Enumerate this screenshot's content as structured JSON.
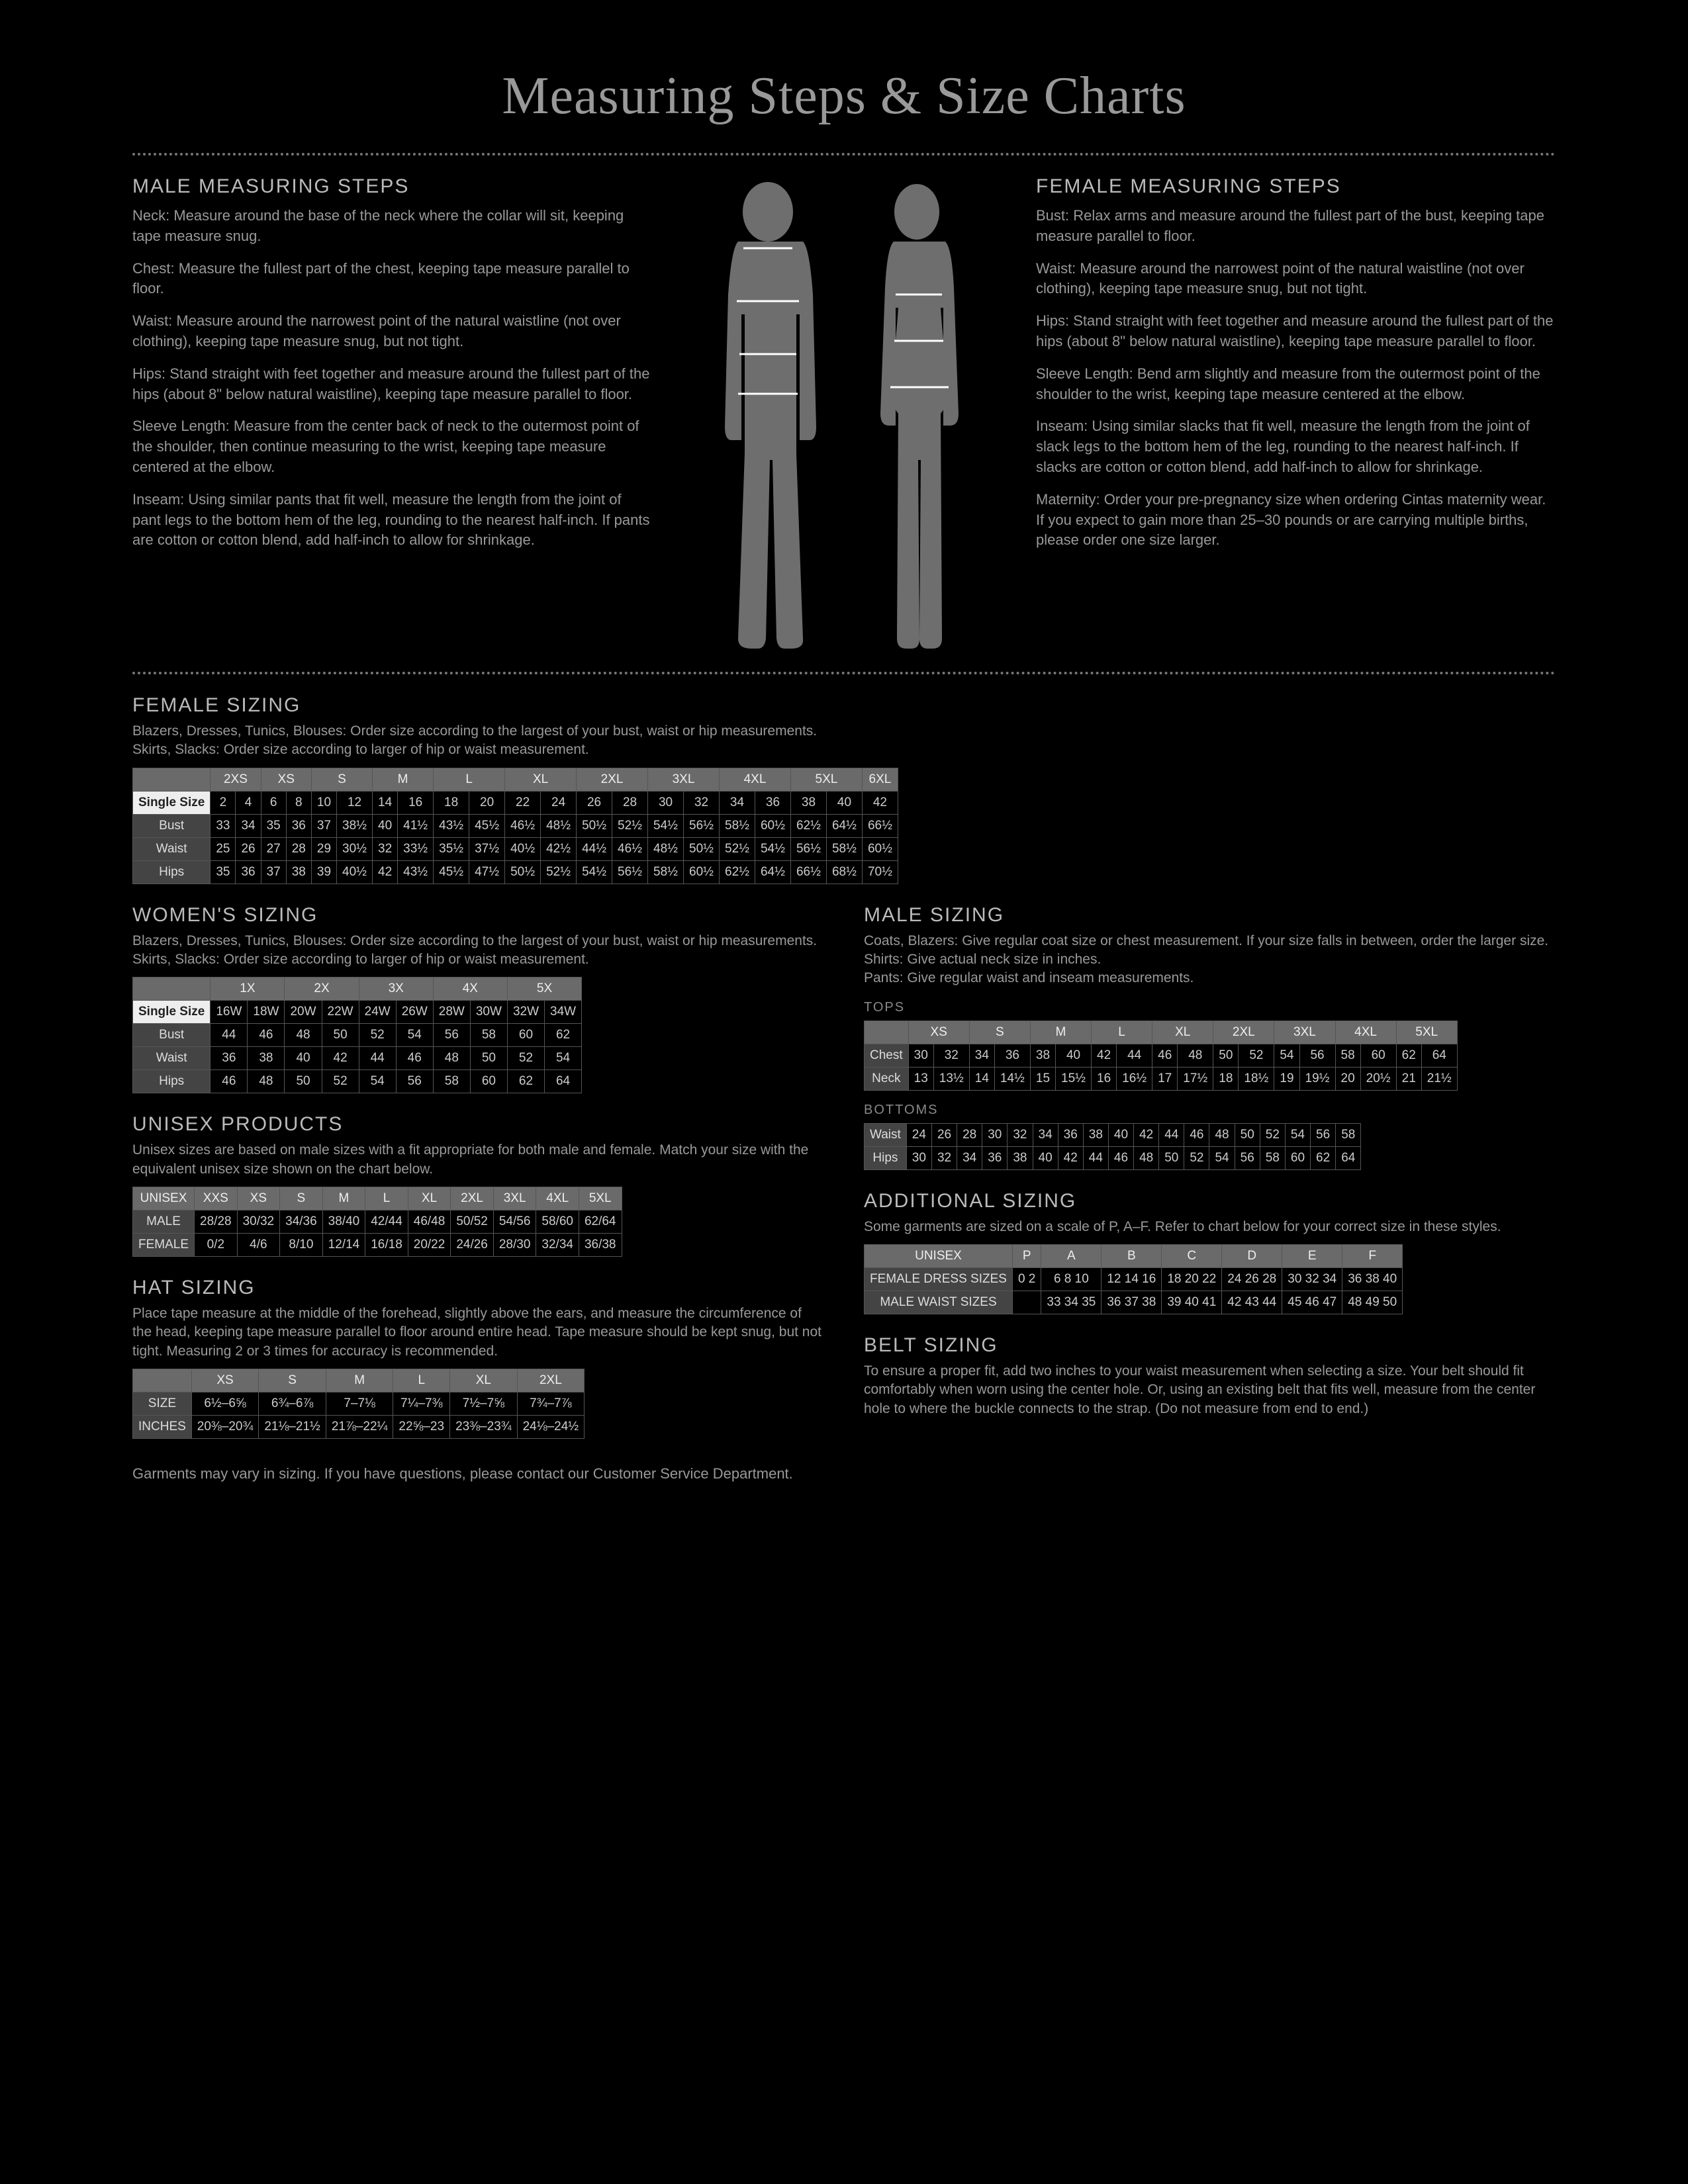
{
  "title": "Measuring Steps & Size Charts",
  "male_steps": {
    "heading": "MALE MEASURING STEPS",
    "items": [
      "Neck: Measure around the base of the neck where the collar will sit, keeping tape measure snug.",
      "Chest: Measure the fullest part of the chest, keeping tape measure parallel to floor.",
      "Waist: Measure around the narrowest point of the natural waistline (not over clothing), keeping tape measure snug, but not tight.",
      "Hips: Stand straight with feet together and measure around the fullest part of the hips (about 8\" below natural waistline), keeping tape measure parallel to floor.",
      "Sleeve Length: Measure from the center back of neck to the outermost point of the shoulder, then continue measuring to the wrist, keeping tape measure centered at the elbow.",
      "Inseam: Using similar pants that fit well, measure the length from the joint of pant legs to the bottom hem of the leg, rounding to the nearest half-inch. If pants are cotton or cotton blend, add half-inch to allow for shrinkage."
    ]
  },
  "female_steps": {
    "heading": "FEMALE MEASURING STEPS",
    "items": [
      "Bust: Relax arms and measure around the fullest part of the bust, keeping tape measure parallel to floor.",
      "Waist: Measure around the narrowest point of the natural waistline (not over clothing), keeping tape measure snug, but not tight.",
      "Hips: Stand straight with feet together and measure around the fullest part of the hips (about 8\" below natural waistline), keeping tape measure parallel to floor.",
      "Sleeve Length: Bend arm slightly and measure from the outermost point of the shoulder to the wrist, keeping tape measure centered at the elbow.",
      "Inseam: Using similar slacks that fit well, measure the length from the joint of slack legs to the bottom hem of the leg, rounding to the nearest half-inch. If slacks are cotton or cotton blend, add half-inch to allow for shrinkage.",
      "Maternity: Order your pre-pregnancy size when ordering Cintas maternity wear. If you expect to gain more than 25–30 pounds or are carrying multiple births, please order one size larger."
    ]
  },
  "female_sizing": {
    "heading": "FEMALE SIZING",
    "desc": "Blazers, Dresses, Tunics, Blouses: Order size according to the largest of your bust, waist or hip measurements.\nSkirts, Slacks: Order size according to larger of hip or waist measurement.",
    "size_groups": [
      "2XS",
      "XS",
      "S",
      "M",
      "L",
      "XL",
      "2XL",
      "3XL",
      "4XL",
      "5XL",
      "6XL"
    ],
    "single_label": "Single Size",
    "singles": [
      "2",
      "4",
      "6",
      "8",
      "10",
      "12",
      "14",
      "16",
      "18",
      "20",
      "22",
      "24",
      "26",
      "28",
      "30",
      "32",
      "34",
      "36",
      "38",
      "40",
      "42"
    ],
    "rows": [
      {
        "label": "Bust",
        "vals": [
          "33",
          "34",
          "35",
          "36",
          "37",
          "38½",
          "40",
          "41½",
          "43½",
          "45½",
          "46½",
          "48½",
          "50½",
          "52½",
          "54½",
          "56½",
          "58½",
          "60½",
          "62½",
          "64½",
          "66½"
        ]
      },
      {
        "label": "Waist",
        "vals": [
          "25",
          "26",
          "27",
          "28",
          "29",
          "30½",
          "32",
          "33½",
          "35½",
          "37½",
          "40½",
          "42½",
          "44½",
          "46½",
          "48½",
          "50½",
          "52½",
          "54½",
          "56½",
          "58½",
          "60½"
        ]
      },
      {
        "label": "Hips",
        "vals": [
          "35",
          "36",
          "37",
          "38",
          "39",
          "40½",
          "42",
          "43½",
          "45½",
          "47½",
          "50½",
          "52½",
          "54½",
          "56½",
          "58½",
          "60½",
          "62½",
          "64½",
          "66½",
          "68½",
          "70½"
        ]
      }
    ]
  },
  "womens_sizing": {
    "heading": "WOMEN'S SIZING",
    "desc": "Blazers, Dresses, Tunics, Blouses: Order size according to the largest of your bust, waist or hip measurements.\nSkirts, Slacks: Order size according to larger of hip or waist measurement.",
    "size_groups": [
      "1X",
      "2X",
      "3X",
      "4X",
      "5X"
    ],
    "single_label": "Single Size",
    "singles": [
      "16W",
      "18W",
      "20W",
      "22W",
      "24W",
      "26W",
      "28W",
      "30W",
      "32W",
      "34W"
    ],
    "rows": [
      {
        "label": "Bust",
        "vals": [
          "44",
          "46",
          "48",
          "50",
          "52",
          "54",
          "56",
          "58",
          "60",
          "62"
        ]
      },
      {
        "label": "Waist",
        "vals": [
          "36",
          "38",
          "40",
          "42",
          "44",
          "46",
          "48",
          "50",
          "52",
          "54"
        ]
      },
      {
        "label": "Hips",
        "vals": [
          "46",
          "48",
          "50",
          "52",
          "54",
          "56",
          "58",
          "60",
          "62",
          "64"
        ]
      }
    ]
  },
  "unisex": {
    "heading": "UNISEX PRODUCTS",
    "desc": "Unisex sizes are based on male sizes with a fit appropriate for both male and female. Match your size with the equivalent unisex size shown on the chart below.",
    "cols": [
      "UNISEX",
      "XXS",
      "XS",
      "S",
      "M",
      "L",
      "XL",
      "2XL",
      "3XL",
      "4XL",
      "5XL"
    ],
    "rows": [
      {
        "label": "MALE",
        "vals": [
          "28/28",
          "30/32",
          "34/36",
          "38/40",
          "42/44",
          "46/48",
          "50/52",
          "54/56",
          "58/60",
          "62/64"
        ]
      },
      {
        "label": "FEMALE",
        "vals": [
          "0/2",
          "4/6",
          "8/10",
          "12/14",
          "16/18",
          "20/22",
          "24/26",
          "28/30",
          "32/34",
          "36/38"
        ]
      }
    ]
  },
  "hat": {
    "heading": "HAT SIZING",
    "desc": "Place tape measure at the middle of the forehead, slightly above the ears, and measure the circumference of the head, keeping tape measure parallel to floor around entire head. Tape measure should be kept snug, but not tight. Measuring 2 or 3 times for accuracy is recommended.",
    "cols": [
      "",
      "XS",
      "S",
      "M",
      "L",
      "XL",
      "2XL"
    ],
    "rows": [
      {
        "label": "SIZE",
        "vals": [
          "6½–6⅝",
          "6¾–6⅞",
          "7–7⅛",
          "7¼–7⅜",
          "7½–7⅝",
          "7¾–7⅞"
        ]
      },
      {
        "label": "INCHES",
        "vals": [
          "20⅜–20¾",
          "21⅛–21½",
          "21⅞–22¼",
          "22⅝–23",
          "23⅜–23¾",
          "24⅛–24½"
        ]
      }
    ]
  },
  "male_sizing": {
    "heading": "MALE SIZING",
    "desc": "Coats, Blazers: Give regular coat size or chest measurement. If your size falls in between, order the larger size.\nShirts: Give actual neck size in inches.\nPants: Give regular waist and inseam measurements.",
    "tops_label": "TOPS",
    "tops_cols": [
      "",
      "XS",
      "S",
      "M",
      "L",
      "XL",
      "2XL",
      "3XL",
      "4XL",
      "5XL"
    ],
    "tops": [
      {
        "label": "Chest",
        "vals": [
          "30",
          "32",
          "34",
          "36",
          "38",
          "40",
          "42",
          "44",
          "46",
          "48",
          "50",
          "52",
          "54",
          "56",
          "58",
          "60",
          "62",
          "64"
        ]
      },
      {
        "label": "Neck",
        "vals": [
          "13",
          "13½",
          "14",
          "14½",
          "15",
          "15½",
          "16",
          "16½",
          "17",
          "17½",
          "18",
          "18½",
          "19",
          "19½",
          "20",
          "20½",
          "21",
          "21½"
        ]
      }
    ],
    "bottoms_label": "BOTTOMS",
    "bottoms": [
      {
        "label": "Waist",
        "vals": [
          "24",
          "26",
          "28",
          "30",
          "32",
          "34",
          "36",
          "38",
          "40",
          "42",
          "44",
          "46",
          "48",
          "50",
          "52",
          "54",
          "56",
          "58"
        ]
      },
      {
        "label": "Hips",
        "vals": [
          "30",
          "32",
          "34",
          "36",
          "38",
          "40",
          "42",
          "44",
          "46",
          "48",
          "50",
          "52",
          "54",
          "56",
          "58",
          "60",
          "62",
          "64"
        ]
      }
    ]
  },
  "additional": {
    "heading": "ADDITIONAL SIZING",
    "desc": "Some garments are sized on a scale of P, A–F. Refer to chart below for your correct size in these styles.",
    "cols": [
      "UNISEX",
      "P",
      "A",
      "B",
      "C",
      "D",
      "E",
      "F"
    ],
    "rows": [
      {
        "label": "FEMALE DRESS SIZES",
        "vals": [
          "0  2",
          "6  8  10",
          "12  14  16",
          "18  20  22",
          "24  26  28",
          "30  32  34",
          "36  38  40"
        ]
      },
      {
        "label": "MALE WAIST SIZES",
        "vals": [
          "",
          "33  34  35",
          "36  37  38",
          "39  40  41",
          "42  43  44",
          "45  46  47",
          "48  49  50"
        ]
      }
    ]
  },
  "belt": {
    "heading": "BELT SIZING",
    "desc": "To ensure a proper fit, add two inches to your waist measurement when selecting a size. Your belt should fit comfortably when worn using the center hole. Or, using an existing belt that fits well, measure from the center hole to where the buckle connects to the strap. (Do not measure from end to end.)"
  },
  "footer": "Garments may vary in sizing. If you have questions, please contact our Customer Service Department.",
  "colors": {
    "bg": "#000000",
    "silhouette": "#6e6e6e",
    "line": "#ffffff",
    "text": "#a8a8a8",
    "table_hdr": "#6a6a6a",
    "table_border": "#555555"
  }
}
